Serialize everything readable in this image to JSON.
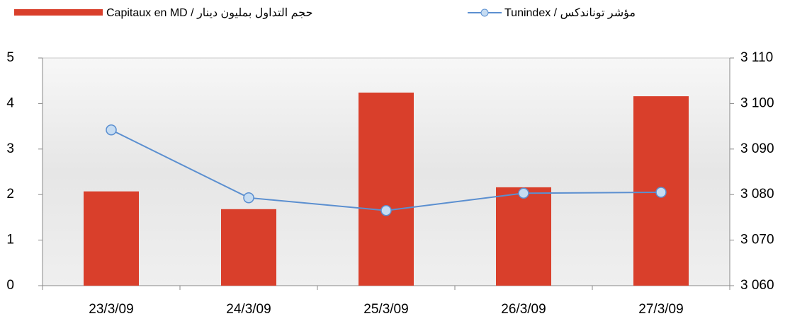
{
  "chart_data": {
    "type": "bar-line",
    "categories": [
      "23/3/09",
      "24/3/09",
      "25/3/09",
      "26/3/09",
      "27/3/09"
    ],
    "series": [
      {
        "name": "Capitaux en MD / حجم التداول بمليون دينار",
        "type": "bar",
        "color": "#d93f2b",
        "values": [
          2.07,
          1.68,
          4.24,
          2.16,
          4.16
        ]
      },
      {
        "name": "Tunindex / مؤشر توناندكس",
        "type": "line",
        "axis": "y2",
        "color": "#5b8fd0",
        "values": [
          3094.2,
          3079.3,
          3076.5,
          3080.3,
          3080.5
        ]
      }
    ],
    "ylim": [
      0,
      5
    ],
    "yticks": [
      0,
      1,
      2,
      3,
      4,
      5
    ],
    "y2lim": [
      3060,
      3110
    ],
    "y2ticks": [
      {
        "value": 3060,
        "label": "3 060"
      },
      {
        "value": 3070,
        "label": "3 070"
      },
      {
        "value": 3080,
        "label": "3 080"
      },
      {
        "value": 3090,
        "label": "3 090"
      },
      {
        "value": 3100,
        "label": "3 100"
      },
      {
        "value": 3110,
        "label": "3 110"
      }
    ],
    "legend": "top"
  }
}
